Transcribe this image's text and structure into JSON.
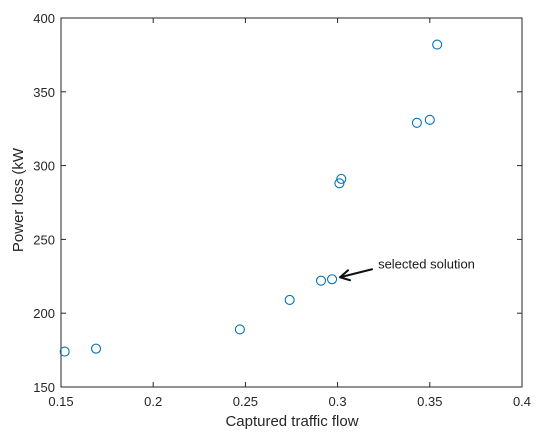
{
  "chart_data": {
    "type": "scatter",
    "title": "",
    "xlabel": "Captured traffic flow",
    "ylabel": "Power loss (kW",
    "xlim": [
      0.15,
      0.4
    ],
    "ylim": [
      150,
      400
    ],
    "xticks": [
      "0.15",
      "0.2",
      "0.25",
      "0.3",
      "0.35",
      "0.4"
    ],
    "yticks": [
      "150",
      "200",
      "250",
      "300",
      "350",
      "400"
    ],
    "grid": false,
    "legend": "none",
    "marker": "open-circle",
    "marker_color": "#0072BD",
    "points": [
      {
        "x": 0.152,
        "y": 174
      },
      {
        "x": 0.169,
        "y": 176
      },
      {
        "x": 0.247,
        "y": 189
      },
      {
        "x": 0.274,
        "y": 209
      },
      {
        "x": 0.291,
        "y": 222
      },
      {
        "x": 0.297,
        "y": 223
      },
      {
        "x": 0.301,
        "y": 288
      },
      {
        "x": 0.302,
        "y": 291
      },
      {
        "x": 0.343,
        "y": 329
      },
      {
        "x": 0.35,
        "y": 331
      },
      {
        "x": 0.354,
        "y": 382
      }
    ],
    "annotations": [
      {
        "text": "selected solution",
        "points_to": {
          "x": 0.297,
          "y": 223
        }
      }
    ]
  }
}
